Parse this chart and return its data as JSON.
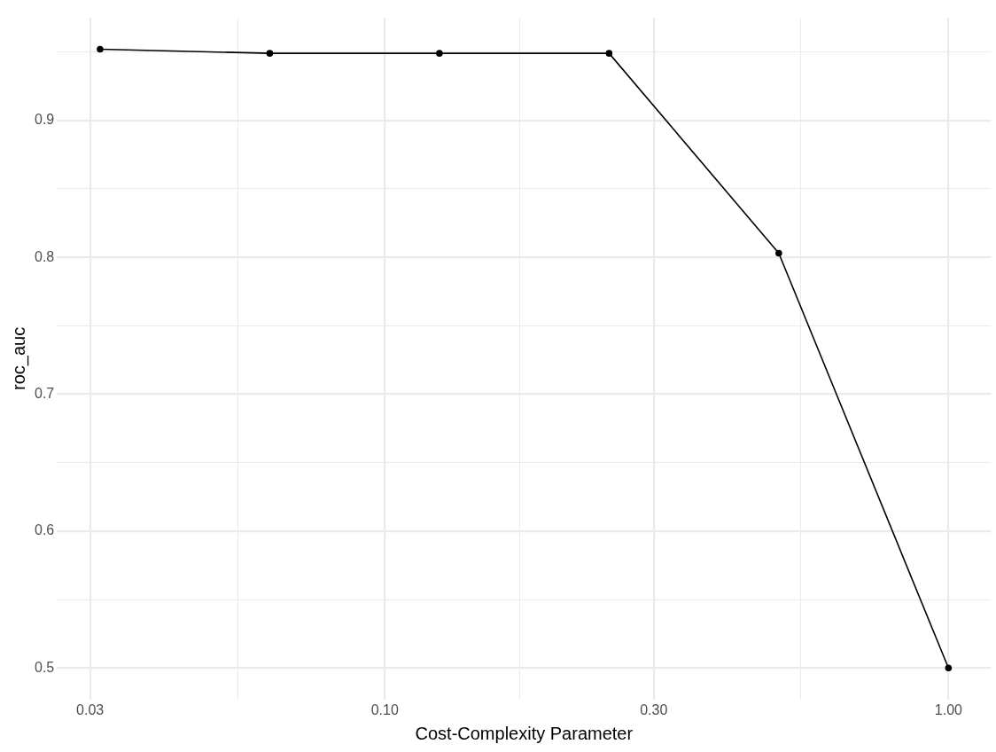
{
  "chart_data": {
    "type": "line",
    "xlabel": "Cost-Complexity Parameter",
    "ylabel": "roc_auc",
    "log": "x",
    "x": [
      0.03125,
      0.0625,
      0.125,
      0.25,
      0.5,
      1
    ],
    "series": [
      {
        "color": "#000000",
        "values": [
          0.952,
          0.949,
          0.949,
          0.949,
          0.803,
          0.5
        ]
      }
    ],
    "xlim": [
      0.0262,
      1.19
    ],
    "xticks": [
      {
        "value": 0.03,
        "label": "0.03"
      },
      {
        "value": 0.0548,
        "label": null
      },
      {
        "value": 0.1,
        "label": "0.10"
      },
      {
        "value": 0.1733,
        "label": null
      },
      {
        "value": 0.3,
        "label": "0.30"
      },
      {
        "value": 0.547,
        "label": null
      },
      {
        "value": 1,
        "label": "1.00"
      }
    ],
    "ylim": [
      0.477,
      0.975
    ],
    "yticks": [
      0.5,
      {
        "value": 0.55,
        "label": null
      },
      0.6,
      {
        "value": 0.65,
        "label": null
      },
      0.7,
      {
        "value": 0.75,
        "label": null
      },
      0.8,
      {
        "value": 0.85,
        "label": null
      },
      0.9,
      {
        "value": 0.95,
        "label": null
      }
    ],
    "grid": true,
    "legend": false,
    "marker": "circle",
    "line_style": "solid"
  }
}
